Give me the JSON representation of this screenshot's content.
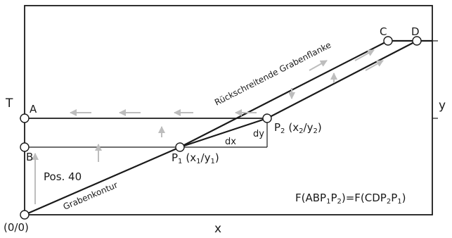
{
  "labels": {
    "axis_t": "T",
    "axis_y": "y",
    "axis_x": "x",
    "origin": "(0/0)",
    "point_a": "A",
    "point_b": "B",
    "point_c": "C",
    "point_d": "D",
    "p1_main": "P",
    "p1_sub": "1",
    "p1_coords_open": "(x",
    "p1_coords_mid": "/y",
    "p1_coords_close": ")",
    "p2_main": "P",
    "p2_sub": "2",
    "p2_coords_open": "(x",
    "p2_coords_mid": "/y",
    "p2_coords_close": ")",
    "dx": "dx",
    "dy": "dy",
    "position": "Pos. 40",
    "retreating_flank": "Rückschreitende Grabenflanke",
    "trench_contour": "Grabenkontur",
    "formula_parts": [
      "F(ABP",
      "1",
      "P",
      "2",
      ")=F(CDP",
      "2",
      "P",
      "1",
      ")"
    ]
  },
  "colors": {
    "line": "#1a1a1a",
    "arrow": "#bdbdbd"
  }
}
